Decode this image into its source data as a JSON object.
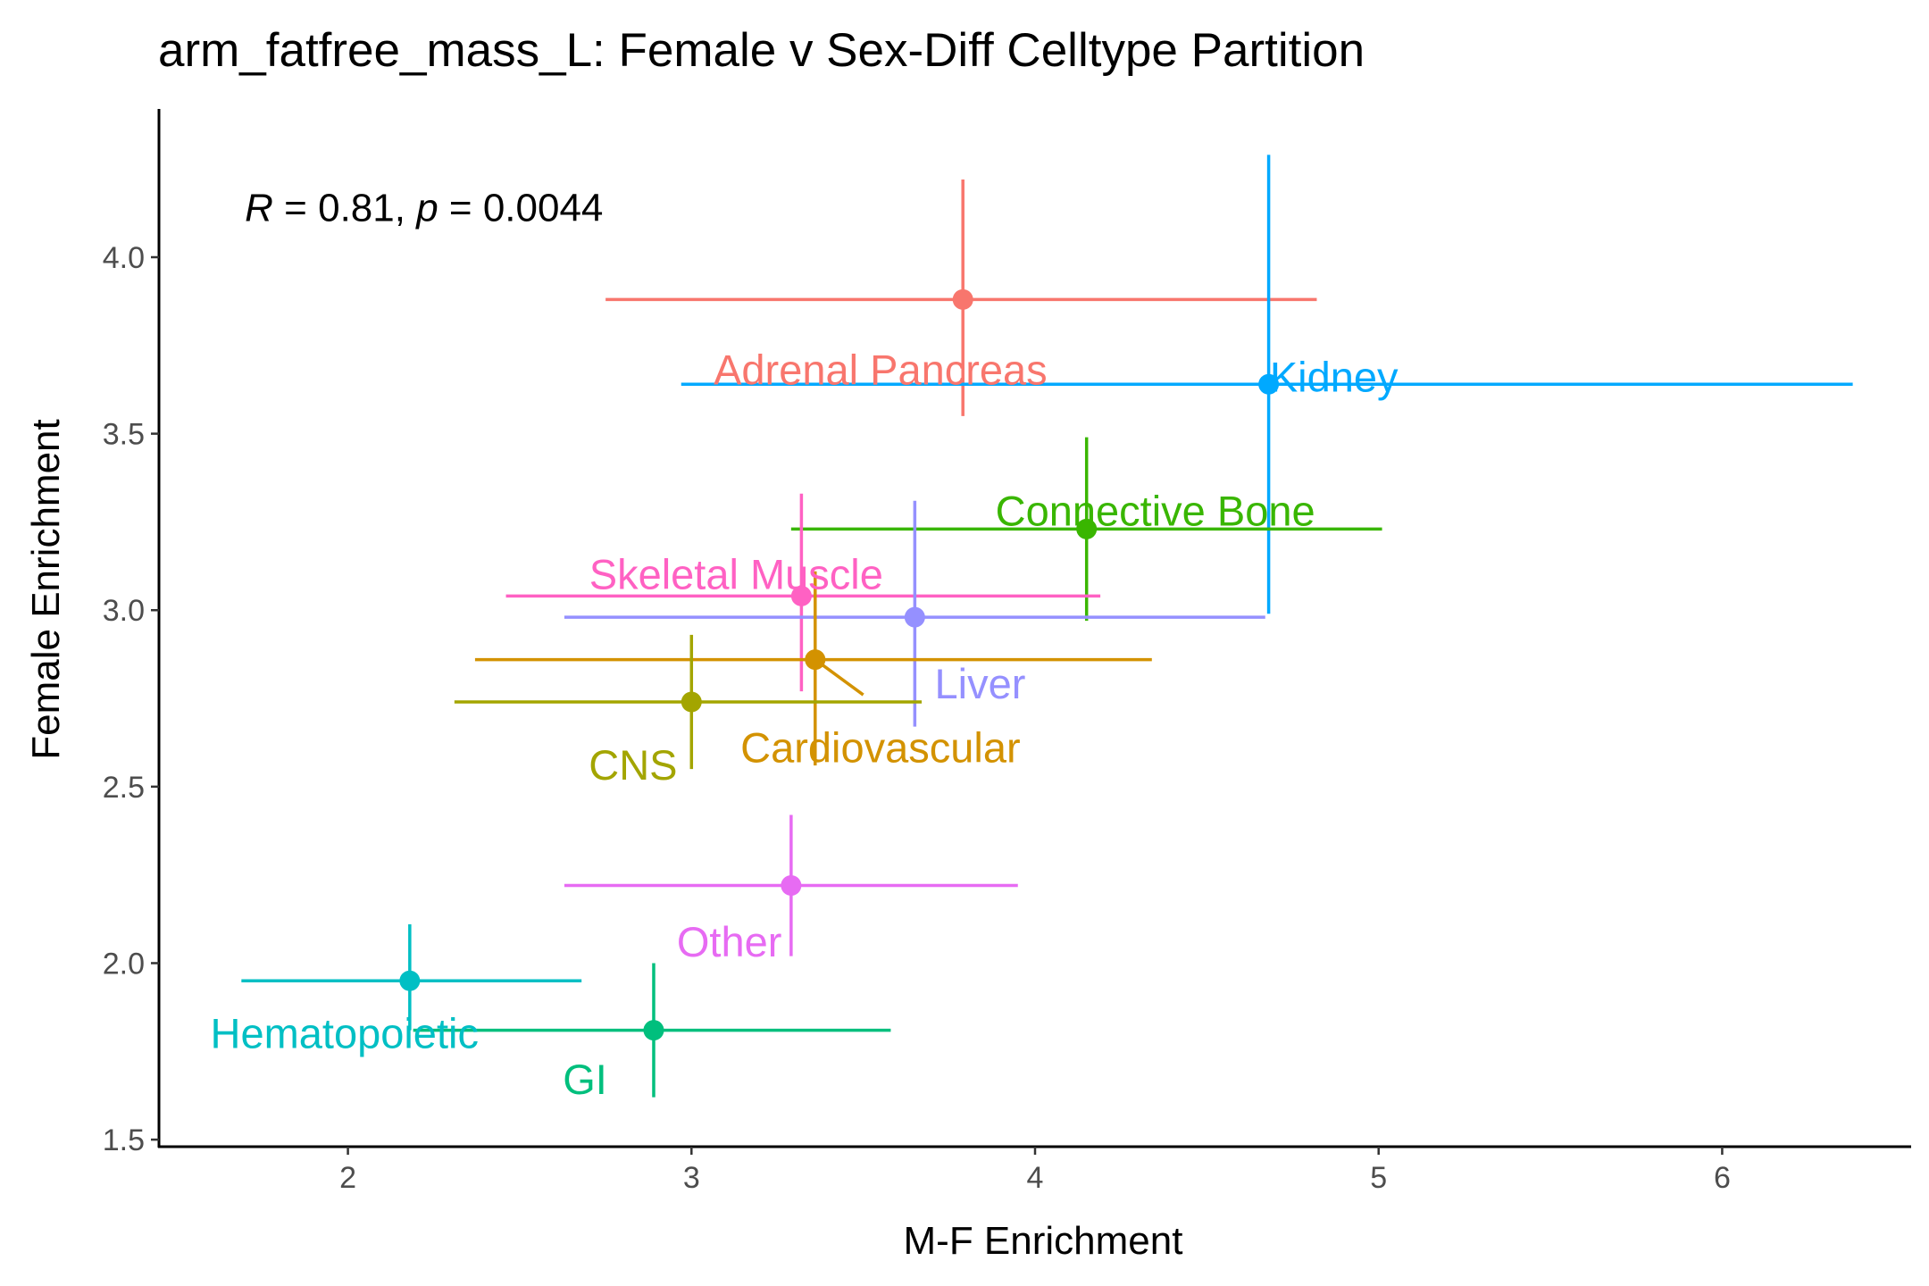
{
  "chart_data": {
    "type": "scatter",
    "title": "arm_fatfree_mass_L: Female v Sex-Diff Celltype Partition",
    "xlabel": "M-F Enrichment",
    "ylabel": "Female Enrichment",
    "xlim": [
      1.45,
      6.55
    ],
    "ylim": [
      1.48,
      4.42
    ],
    "xticks": [
      2,
      3,
      4,
      5,
      6
    ],
    "yticks": [
      1.5,
      2.0,
      2.5,
      3.0,
      3.5,
      4.0
    ],
    "xtick_labels": [
      "2",
      "3",
      "4",
      "5",
      "6"
    ],
    "ytick_labels": [
      "1.5",
      "2.0",
      "2.5",
      "3.0",
      "3.5",
      "4.0"
    ],
    "grid": false,
    "legend": "none",
    "annotation": {
      "r_symbol": "R",
      "r_text": " = 0.81, ",
      "p_symbol": "p",
      "p_text": " = 0.0044",
      "x": 1.7,
      "y": 4.14
    },
    "points": [
      {
        "label": "Adrenal Pancreas",
        "color": "#F8766D",
        "x": 3.79,
        "y": 3.88,
        "xmin": 2.75,
        "xmax": 4.82,
        "ymin": 3.55,
        "ymax": 4.22,
        "label_x": 3.55,
        "label_y": 3.68,
        "label_anchor": "middle"
      },
      {
        "label": "Kidney",
        "color": "#00A9FF",
        "x": 4.68,
        "y": 3.64,
        "xmin": 2.97,
        "xmax": 6.38,
        "ymin": 2.99,
        "ymax": 4.29,
        "label_x": 4.87,
        "label_y": 3.66,
        "label_anchor": "middle"
      },
      {
        "label": "Connective Bone",
        "color": "#39B600",
        "x": 4.15,
        "y": 3.23,
        "xmin": 3.29,
        "xmax": 5.01,
        "ymin": 2.97,
        "ymax": 3.49,
        "label_x": 4.35,
        "label_y": 3.28,
        "label_anchor": "middle"
      },
      {
        "label": "Skeletal Muscle",
        "color": "#FF61C3",
        "x": 3.32,
        "y": 3.04,
        "xmin": 2.46,
        "xmax": 4.19,
        "ymin": 2.77,
        "ymax": 3.33,
        "label_x": 3.13,
        "label_y": 3.1,
        "label_anchor": "middle"
      },
      {
        "label": "Liver",
        "color": "#9590FF",
        "x": 3.65,
        "y": 2.98,
        "xmin": 2.63,
        "xmax": 4.67,
        "ymin": 2.67,
        "ymax": 3.31,
        "label_x": 3.84,
        "label_y": 2.79,
        "label_anchor": "middle"
      },
      {
        "label": "Cardiovascular",
        "color": "#D39200",
        "x": 3.36,
        "y": 2.86,
        "xmin": 2.37,
        "xmax": 4.34,
        "ymin": 2.56,
        "ymax": 3.11,
        "label_x": 3.55,
        "label_y": 2.61,
        "label_anchor": "middle"
      },
      {
        "label": "CNS",
        "color": "#A3A500",
        "x": 3.0,
        "y": 2.74,
        "xmin": 2.31,
        "xmax": 3.67,
        "ymin": 2.55,
        "ymax": 2.93,
        "label_x": 2.83,
        "label_y": 2.56,
        "label_anchor": "middle"
      },
      {
        "label": "Other",
        "color": "#E76BF3",
        "x": 3.29,
        "y": 2.22,
        "xmin": 2.63,
        "xmax": 3.95,
        "ymin": 2.02,
        "ymax": 2.42,
        "label_x": 3.11,
        "label_y": 2.06,
        "label_anchor": "middle"
      },
      {
        "label": "Hematopoietic",
        "color": "#00BFC4",
        "x": 2.18,
        "y": 1.95,
        "xmin": 1.69,
        "xmax": 2.68,
        "ymin": 1.81,
        "ymax": 2.11,
        "label_x": 1.99,
        "label_y": 1.8,
        "label_anchor": "middle"
      },
      {
        "label": "GI",
        "color": "#00BF7D",
        "x": 2.89,
        "y": 1.81,
        "xmin": 2.19,
        "xmax": 3.58,
        "ymin": 1.62,
        "ymax": 2.0,
        "label_x": 2.69,
        "label_y": 1.67,
        "label_anchor": "middle"
      }
    ],
    "connectors": [
      {
        "color": "#D39200",
        "x1": 3.36,
        "y1": 2.86,
        "x2": 3.5,
        "y2": 2.76
      }
    ]
  }
}
